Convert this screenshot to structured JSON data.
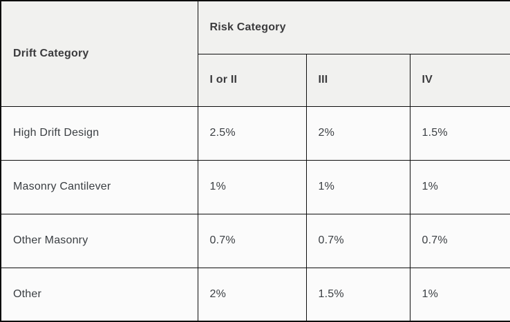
{
  "table": {
    "corner_header": "Drift Category",
    "group_header": "Risk Category",
    "columns": [
      "I or II",
      "III",
      "IV"
    ],
    "rows": [
      {
        "label": "High Drift Design",
        "values": [
          "2.5%",
          "2%",
          "1.5%"
        ]
      },
      {
        "label": "Masonry Cantilever",
        "values": [
          "1%",
          "1%",
          "1%"
        ]
      },
      {
        "label": "Other Masonry",
        "values": [
          "0.7%",
          "0.7%",
          "0.7%"
        ]
      },
      {
        "label": "Other",
        "values": [
          "2%",
          "1.5%",
          "1%"
        ]
      }
    ],
    "colors": {
      "header_background": "#f1f1ef",
      "body_background": "#fbfbfb",
      "border": "#0d0d0d",
      "text": "#3a3e42"
    }
  }
}
